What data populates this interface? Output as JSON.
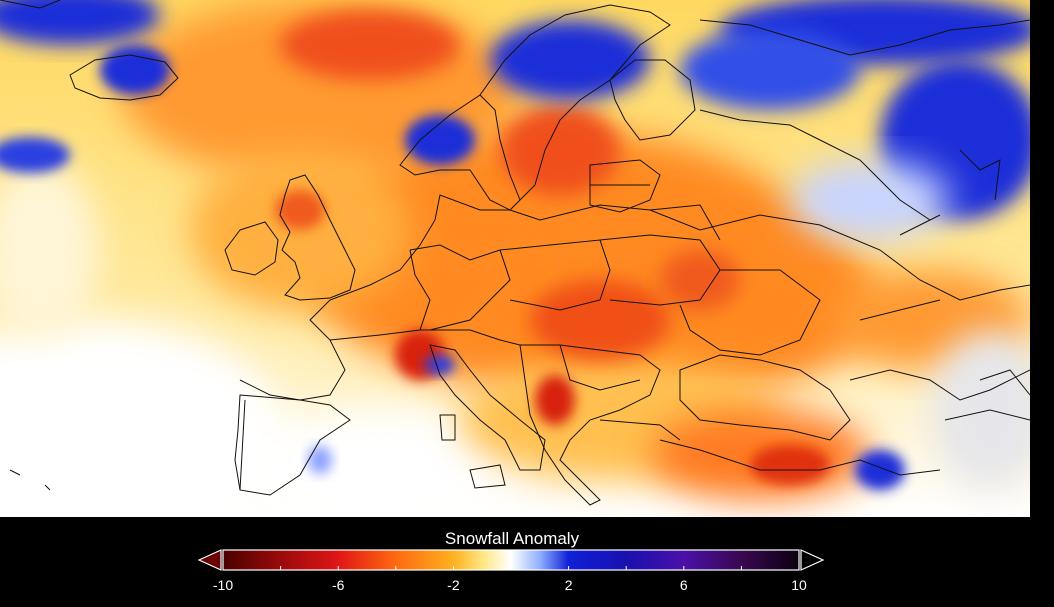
{
  "legend": {
    "title": "Snowfall Anomaly",
    "min": -10,
    "max": 10,
    "ticks": [
      {
        "value": -10,
        "label": "-10"
      },
      {
        "value": -6,
        "label": "-6"
      },
      {
        "value": -2,
        "label": "-2"
      },
      {
        "value": 2,
        "label": "2"
      },
      {
        "value": 6,
        "label": "6"
      },
      {
        "value": 10,
        "label": "10"
      }
    ],
    "colormap": [
      {
        "value": -10,
        "color": "#4a0000"
      },
      {
        "value": -8,
        "color": "#9a0a0a"
      },
      {
        "value": -6,
        "color": "#e01616"
      },
      {
        "value": -4,
        "color": "#ff6a10"
      },
      {
        "value": -2,
        "color": "#ffb020"
      },
      {
        "value": -1,
        "color": "#ffe680"
      },
      {
        "value": 0,
        "color": "#ffffff"
      },
      {
        "value": 1,
        "color": "#8fb0ff"
      },
      {
        "value": 2,
        "color": "#1020d8"
      },
      {
        "value": 4,
        "color": "#1a10b0"
      },
      {
        "value": 6,
        "color": "#4a10a8"
      },
      {
        "value": 8,
        "color": "#3a0850"
      },
      {
        "value": 10,
        "color": "#0a0010"
      }
    ]
  },
  "map": {
    "region": "Europe",
    "colors": {
      "ocean_warm": "#ffd24a",
      "orange": "#ff8a1c",
      "red": "#f04a16",
      "blue": "#1a2fd8",
      "white": "#ffffff",
      "border": "#111111"
    }
  }
}
